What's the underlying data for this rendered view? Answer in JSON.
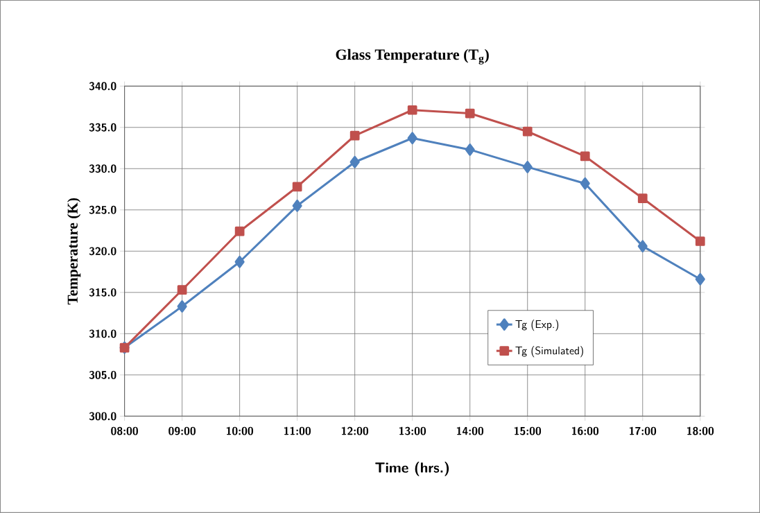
{
  "chart_data": {
    "type": "line",
    "title": "Glass Temperature (T$_{g}$)",
    "xlabel": "Time (hrs.)",
    "ylabel": "Temperature (K)",
    "categories": [
      "08:00",
      "09:00",
      "10:00",
      "11:00",
      "12:00",
      "13:00",
      "14:00",
      "15:00",
      "16:00",
      "17:00",
      "18:00"
    ],
    "series": [
      {
        "name": "Tg (Exp.)",
        "color": "#4f81bd",
        "marker": "diamond",
        "values": [
          308.3,
          313.3,
          318.7,
          325.5,
          330.8,
          333.7,
          332.3,
          330.2,
          328.2,
          320.6,
          316.6
        ]
      },
      {
        "name": "Tg (Simulated)",
        "color": "#c0504d",
        "marker": "square",
        "values": [
          308.3,
          315.3,
          322.4,
          327.8,
          334.0,
          337.1,
          336.7,
          334.5,
          331.5,
          326.4,
          321.2
        ]
      }
    ],
    "ylim": [
      300,
      340
    ],
    "yticks": [
      {
        "value": 300,
        "label": "300.0"
      },
      {
        "value": 305,
        "label": "305.0"
      },
      {
        "value": 310,
        "label": "310.0"
      },
      {
        "value": 315,
        "label": "315.0"
      },
      {
        "value": 320,
        "label": "320.0"
      },
      {
        "value": 325,
        "label": "325.0"
      },
      {
        "value": 330,
        "label": "330.0"
      },
      {
        "value": 335,
        "label": "335.0"
      },
      {
        "value": 340,
        "label": "340.0"
      }
    ],
    "grid": true,
    "legend": "bottom right",
    "line_style": "solid"
  }
}
